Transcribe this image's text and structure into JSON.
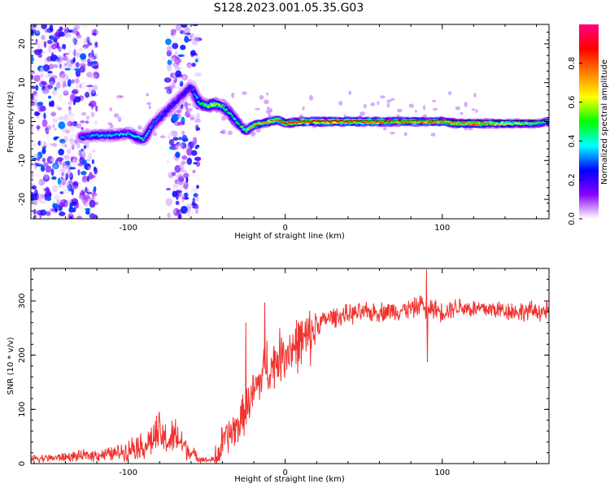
{
  "title": "S128.2023.001.05.35.G03",
  "chart_data": [
    {
      "type": "heatmap",
      "xlabel": "Height of straight line (km)",
      "ylabel": "Frequency (Hz)",
      "xlim": [
        -162,
        168
      ],
      "ylim": [
        -25,
        25
      ],
      "xticks": [
        -100,
        0,
        100
      ],
      "xticklabels": [
        "-100",
        "0",
        "100"
      ],
      "yticks": [
        20,
        10,
        0,
        -10,
        -20
      ],
      "yticklabels": [
        "20",
        "10",
        "0",
        "-10",
        "-20"
      ],
      "grid": false,
      "colorbar": {
        "label": "Normalized spectral amplitude",
        "range": [
          0.0,
          1.0
        ],
        "ticks": [
          0.0,
          0.2,
          0.4,
          0.6,
          0.8
        ],
        "ticklabels": [
          "0.0",
          "0.2",
          "0.4",
          "0.6",
          "0.8"
        ],
        "colors": [
          "#ffffff",
          "#8a00ff",
          "#0000ff",
          "#00ffff",
          "#00ff00",
          "#ffff00",
          "#ff8000",
          "#ff0000",
          "#ff0080"
        ]
      },
      "ridge": {
        "x": [
          -130,
          -120,
          -110,
          -100,
          -95,
          -90,
          -85,
          -80,
          -75,
          -70,
          -65,
          -60,
          -55,
          -50,
          -45,
          -40,
          -35,
          -30,
          -25,
          -20,
          -15,
          -10,
          -5,
          0,
          10,
          20,
          40,
          60,
          80,
          100,
          110,
          120,
          140,
          160,
          168
        ],
        "y": [
          -4,
          -3.5,
          -3.5,
          -3,
          -4,
          -4.5,
          -1,
          1,
          3,
          5,
          7,
          9,
          5,
          4,
          4.5,
          4,
          2,
          -0.5,
          -2.5,
          -1,
          -0.5,
          0,
          0.5,
          -0.5,
          0,
          0,
          0,
          0,
          0,
          0,
          -0.5,
          -0.5,
          -0.5,
          -0.5,
          0
        ],
        "amplitude": [
          0.3,
          0.35,
          0.35,
          0.35,
          0.4,
          0.4,
          0.3,
          0.3,
          0.25,
          0.25,
          0.25,
          0.25,
          0.45,
          0.55,
          0.6,
          0.5,
          0.45,
          0.45,
          0.55,
          0.8,
          0.75,
          0.7,
          0.75,
          0.85,
          0.9,
          0.95,
          0.95,
          0.85,
          0.8,
          0.8,
          0.75,
          0.8,
          0.65,
          0.5,
          0.45
        ]
      },
      "noise": {
        "x_ranges": [
          [
            -162,
            -120
          ],
          [
            -75,
            -55
          ]
        ],
        "ylim": [
          -25,
          25
        ]
      }
    },
    {
      "type": "line",
      "xlabel": "Height of straight line (km)",
      "ylabel": "SNR (10 * v/v)",
      "xlim": [
        -162,
        168
      ],
      "ylim": [
        0,
        360
      ],
      "xticks": [
        -100,
        0,
        100
      ],
      "xticklabels": [
        "-100",
        "0",
        "100"
      ],
      "yticks": [
        0,
        100,
        200,
        300
      ],
      "yticklabels": [
        "0",
        "100",
        "200",
        "300"
      ],
      "grid": false,
      "series": [
        {
          "color": "#f0322e",
          "x": [
            -162,
            -150,
            -140,
            -130,
            -120,
            -110,
            -100,
            -95,
            -90,
            -85,
            -80,
            -75,
            -70,
            -65,
            -60,
            -55,
            -50,
            -45,
            -42,
            -40,
            -35,
            -30,
            -25,
            -20,
            -15,
            -12,
            -10,
            -5,
            0,
            5,
            10,
            15,
            20,
            25,
            30,
            40,
            50,
            60,
            70,
            80,
            85,
            88,
            90,
            92,
            95,
            100,
            110,
            120,
            130,
            140,
            150,
            160,
            168
          ],
          "y": [
            10,
            10,
            12,
            14,
            16,
            18,
            25,
            35,
            30,
            45,
            55,
            40,
            50,
            35,
            20,
            10,
            6,
            8,
            20,
            40,
            55,
            70,
            100,
            130,
            160,
            190,
            170,
            195,
            205,
            215,
            225,
            230,
            255,
            265,
            270,
            275,
            278,
            280,
            282,
            285,
            290,
            300,
            260,
            290,
            285,
            280,
            290,
            285,
            285,
            283,
            280,
            282,
            280
          ],
          "spikes": [
            {
              "x": -13,
              "y": 297
            },
            {
              "x": 90,
              "y": 358
            },
            {
              "x": 90.5,
              "y": 187
            },
            {
              "x": -45,
              "y": 2
            },
            {
              "x": -25,
              "y": 260
            }
          ]
        }
      ]
    }
  ]
}
